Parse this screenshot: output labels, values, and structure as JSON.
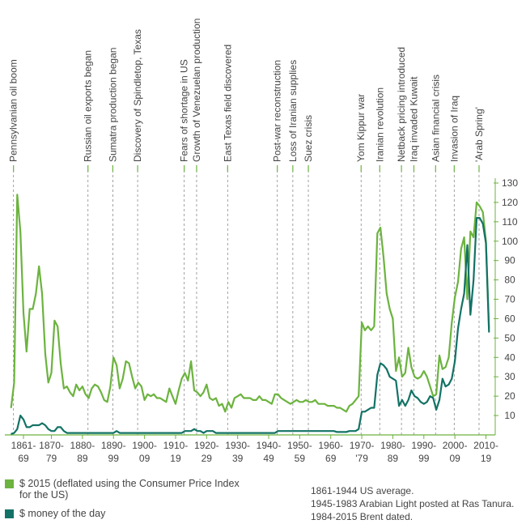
{
  "chart_data": {
    "type": "line",
    "ylim": [
      0,
      130
    ],
    "yticks": [
      10,
      20,
      30,
      40,
      50,
      60,
      70,
      80,
      90,
      100,
      110,
      120,
      130
    ],
    "xlim": [
      1861,
      2015
    ],
    "xtick_labels": [
      {
        "year": 1861,
        "line1": "1861-",
        "line2": "69"
      },
      {
        "year": 1870,
        "line1": "1870-",
        "line2": "79"
      },
      {
        "year": 1880,
        "line1": "1880-",
        "line2": "89"
      },
      {
        "year": 1890,
        "line1": "1890-",
        "line2": "99"
      },
      {
        "year": 1900,
        "line1": "1900-",
        "line2": "09"
      },
      {
        "year": 1910,
        "line1": "1910-",
        "line2": "19"
      },
      {
        "year": 1920,
        "line1": "1920-",
        "line2": "29"
      },
      {
        "year": 1930,
        "line1": "1930-",
        "line2": "39"
      },
      {
        "year": 1940,
        "line1": "1940-",
        "line2": "49"
      },
      {
        "year": 1950,
        "line1": "1950-",
        "line2": "59"
      },
      {
        "year": 1960,
        "line1": "1960-",
        "line2": "69"
      },
      {
        "year": 1970,
        "line1": "1970-",
        "line2": "'79"
      },
      {
        "year": 1980,
        "line1": "1980-",
        "line2": "89"
      },
      {
        "year": 1990,
        "line1": "1990-",
        "line2": "99"
      },
      {
        "year": 2000,
        "line1": "2000-",
        "line2": "09"
      },
      {
        "year": 2010,
        "line1": "2010-",
        "line2": "19"
      }
    ],
    "events": [
      {
        "year": 1861,
        "label": "Pennsylvanian oil boom"
      },
      {
        "year": 1885,
        "label": "Russian oil exports began"
      },
      {
        "year": 1893,
        "label": "Sumatra production began"
      },
      {
        "year": 1901,
        "label": "Discovery of Spindletop, Texas"
      },
      {
        "year": 1916,
        "label": "Fears of shortage in US"
      },
      {
        "year": 1920,
        "label": "Growth of Venezuelan production"
      },
      {
        "year": 1930,
        "label": "East Texas field discovered"
      },
      {
        "year": 1946,
        "label": "Post-war reconstruction"
      },
      {
        "year": 1951,
        "label": "Loss of Iranian supplies"
      },
      {
        "year": 1956,
        "label": "Suez crisis"
      },
      {
        "year": 1973,
        "label": "Yom Kippur war"
      },
      {
        "year": 1979,
        "label": "Iranian revolution"
      },
      {
        "year": 1986,
        "label": "Netback pricing introduced"
      },
      {
        "year": 1990,
        "label": "Iraq invaded Kuwait"
      },
      {
        "year": 1997,
        "label": "Asian financial crisis"
      },
      {
        "year": 2003,
        "label": "Invasion of Iraq"
      },
      {
        "year": 2011,
        "label": "'Arab Spring'"
      }
    ],
    "series": [
      {
        "name": "$ 2015 (deflated using the Consumer Price Index for the US)",
        "color": "#6cb33f",
        "x": [
          1861,
          1862,
          1863,
          1864,
          1865,
          1866,
          1867,
          1868,
          1869,
          1870,
          1871,
          1872,
          1873,
          1874,
          1875,
          1876,
          1877,
          1878,
          1879,
          1880,
          1881,
          1882,
          1883,
          1884,
          1885,
          1886,
          1887,
          1888,
          1889,
          1890,
          1891,
          1892,
          1893,
          1894,
          1895,
          1896,
          1897,
          1898,
          1899,
          1900,
          1901,
          1902,
          1903,
          1904,
          1905,
          1906,
          1907,
          1908,
          1909,
          1910,
          1911,
          1912,
          1913,
          1914,
          1915,
          1916,
          1917,
          1918,
          1919,
          1920,
          1921,
          1922,
          1923,
          1924,
          1925,
          1926,
          1927,
          1928,
          1929,
          1930,
          1931,
          1932,
          1933,
          1934,
          1935,
          1936,
          1937,
          1938,
          1939,
          1940,
          1941,
          1942,
          1943,
          1944,
          1945,
          1946,
          1947,
          1948,
          1949,
          1950,
          1951,
          1952,
          1953,
          1954,
          1955,
          1956,
          1957,
          1958,
          1959,
          1960,
          1961,
          1962,
          1963,
          1964,
          1965,
          1966,
          1967,
          1968,
          1969,
          1970,
          1971,
          1972,
          1973,
          1974,
          1975,
          1976,
          1977,
          1978,
          1979,
          1980,
          1981,
          1982,
          1983,
          1984,
          1985,
          1986,
          1987,
          1988,
          1989,
          1990,
          1991,
          1992,
          1993,
          1994,
          1995,
          1996,
          1997,
          1998,
          1999,
          2000,
          2001,
          2002,
          2003,
          2004,
          2005,
          2006,
          2007,
          2008,
          2009,
          2010,
          2011,
          2012,
          2013,
          2014,
          2015
        ],
        "values": [
          14,
          27,
          124,
          105,
          63,
          43,
          65,
          65,
          73,
          87,
          73,
          42,
          27,
          32,
          59,
          56,
          37,
          24,
          25,
          22,
          20,
          26,
          23,
          25,
          21,
          19,
          24,
          26,
          25,
          22,
          18,
          17,
          25,
          40,
          36,
          24,
          29,
          38,
          37,
          30,
          24,
          27,
          25,
          18,
          21,
          20,
          21,
          19,
          19,
          18,
          17,
          24,
          20,
          16,
          23,
          29,
          32,
          28,
          38,
          23,
          22,
          20,
          22,
          26,
          19,
          18,
          19,
          15,
          16,
          12,
          17,
          14,
          19,
          20,
          21,
          19,
          19,
          19,
          18,
          18,
          20,
          18,
          18,
          17,
          16,
          21,
          21,
          19,
          18,
          17,
          16,
          17,
          18,
          17,
          17,
          18,
          17,
          17,
          18,
          16,
          16,
          16,
          15,
          15,
          15,
          14,
          14,
          13,
          12,
          15,
          16,
          18,
          20,
          58,
          54,
          56,
          54,
          56,
          104,
          107,
          92,
          73,
          65,
          60,
          33,
          40,
          30,
          32,
          45,
          35,
          30,
          29,
          30,
          33,
          30,
          25,
          20,
          21,
          41,
          34,
          35,
          40,
          58,
          71,
          79,
          96,
          102,
          70,
          105,
          102,
          120,
          118,
          115,
          100,
          55
        ],
        "label_stroke": 2.2
      },
      {
        "name": "$ money of the day",
        "color": "#137265",
        "x": [
          1861,
          1862,
          1863,
          1864,
          1865,
          1866,
          1867,
          1868,
          1869,
          1870,
          1871,
          1872,
          1873,
          1874,
          1875,
          1876,
          1877,
          1878,
          1879,
          1880,
          1881,
          1882,
          1883,
          1884,
          1885,
          1886,
          1887,
          1888,
          1889,
          1890,
          1891,
          1892,
          1893,
          1894,
          1895,
          1896,
          1897,
          1898,
          1899,
          1900,
          1901,
          1902,
          1903,
          1904,
          1905,
          1906,
          1907,
          1908,
          1909,
          1910,
          1911,
          1912,
          1913,
          1914,
          1915,
          1916,
          1917,
          1918,
          1919,
          1920,
          1921,
          1922,
          1923,
          1924,
          1925,
          1926,
          1927,
          1928,
          1929,
          1930,
          1931,
          1932,
          1933,
          1934,
          1935,
          1936,
          1937,
          1938,
          1939,
          1940,
          1941,
          1942,
          1943,
          1944,
          1945,
          1946,
          1947,
          1948,
          1949,
          1950,
          1951,
          1952,
          1953,
          1954,
          1955,
          1956,
          1957,
          1958,
          1959,
          1960,
          1961,
          1962,
          1963,
          1964,
          1965,
          1966,
          1967,
          1968,
          1969,
          1970,
          1971,
          1972,
          1973,
          1974,
          1975,
          1976,
          1977,
          1978,
          1979,
          1980,
          1981,
          1982,
          1983,
          1984,
          1985,
          1986,
          1987,
          1988,
          1989,
          1990,
          1991,
          1992,
          1993,
          1994,
          1995,
          1996,
          1997,
          1998,
          1999,
          2000,
          2001,
          2002,
          2003,
          2004,
          2005,
          2006,
          2007,
          2008,
          2009,
          2010,
          2011,
          2012,
          2013,
          2014,
          2015
        ],
        "values": [
          0.5,
          1,
          3,
          10,
          8,
          4,
          4,
          5,
          5,
          5,
          6,
          5,
          3,
          2,
          2,
          4,
          4,
          2,
          1,
          1,
          1,
          1,
          1,
          1,
          1,
          1,
          1,
          1,
          1,
          1,
          1,
          1,
          1,
          1,
          2,
          1,
          1,
          1,
          1,
          1,
          1,
          1,
          1,
          1,
          1,
          1,
          1,
          1,
          1,
          1,
          1,
          1,
          1,
          1,
          1,
          1,
          2,
          2,
          2,
          3,
          2,
          2,
          1,
          2,
          2,
          2,
          1,
          1,
          1,
          1,
          1,
          1,
          1,
          1,
          1,
          1,
          1,
          1,
          1,
          1,
          1,
          1,
          1,
          1,
          1,
          1,
          2,
          2,
          2,
          2,
          2,
          2,
          2,
          2,
          2,
          2,
          2,
          2,
          2,
          2,
          2,
          2,
          2,
          2,
          2,
          1.5,
          1.5,
          1.5,
          1.5,
          2,
          2,
          2,
          3,
          12,
          12,
          13,
          14,
          14,
          31,
          37,
          36,
          34,
          30,
          29,
          28,
          15,
          18,
          15,
          18,
          23,
          20,
          19,
          17,
          16,
          17,
          20,
          19,
          13,
          18,
          29,
          25,
          26,
          29,
          38,
          55,
          65,
          73,
          98,
          62,
          80,
          112,
          112,
          109,
          99,
          53
        ],
        "label_stroke": 2.2
      }
    ]
  },
  "legend": [
    {
      "text": "$ 2015 (deflated using the Consumer Price Index for the US)",
      "color": "#6cb33f"
    },
    {
      "text": "$ money of the day",
      "color": "#137265"
    }
  ],
  "notes": {
    "line1": "1861-1944 US average.",
    "line2": "1945-1983 Arabian Light posted at Ras Tanura.",
    "line3": "1984-2015 Brent dated."
  }
}
